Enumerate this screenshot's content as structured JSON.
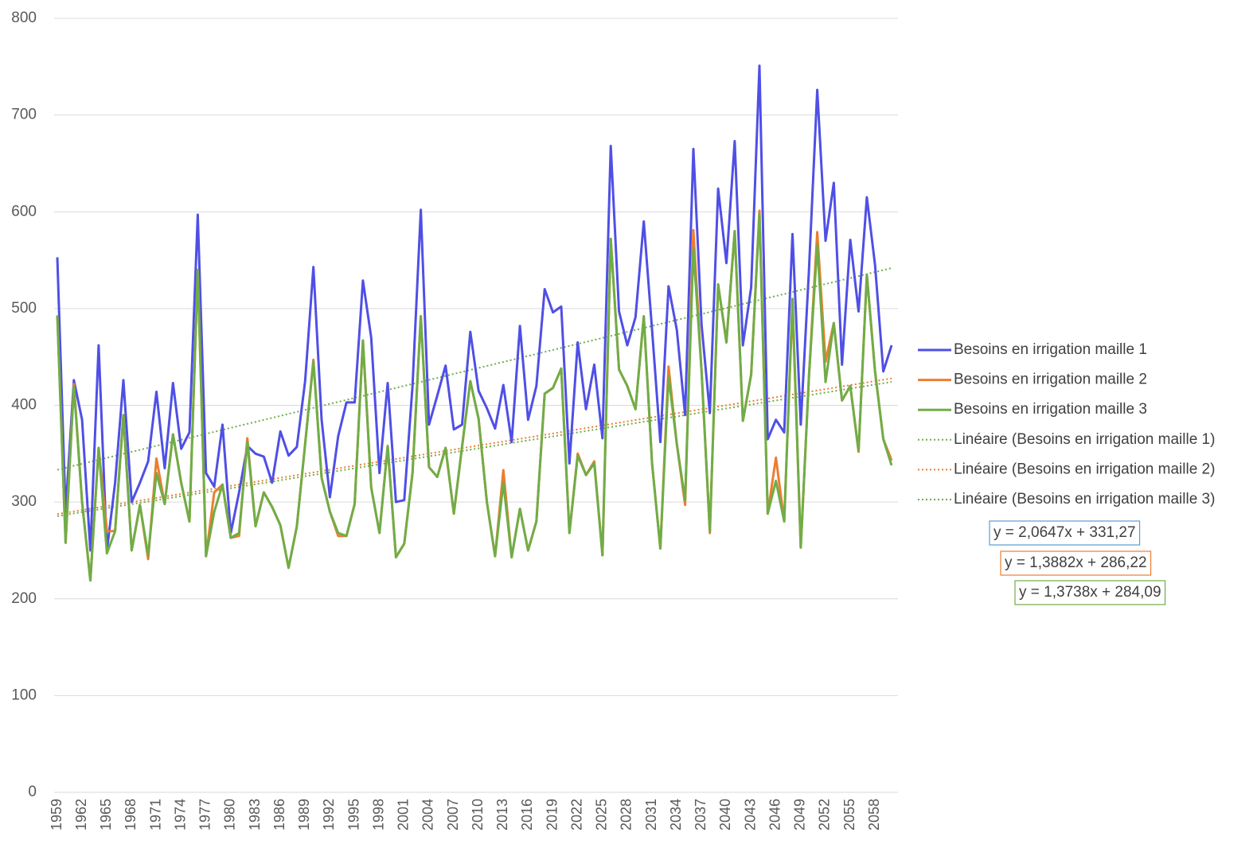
{
  "chart_data": {
    "type": "line",
    "categories": [
      "1959",
      null,
      null,
      "1962",
      null,
      null,
      "1965",
      null,
      null,
      "1968",
      null,
      null,
      "1971",
      null,
      null,
      "1974",
      null,
      null,
      "1977",
      null,
      null,
      "1980",
      null,
      null,
      "1983",
      null,
      null,
      "1986",
      null,
      null,
      "1989",
      null,
      null,
      "1992",
      null,
      null,
      "1995",
      null,
      null,
      "1998",
      null,
      null,
      "2001",
      null,
      null,
      "2004",
      null,
      null,
      "2007",
      null,
      null,
      "2010",
      null,
      null,
      "2013",
      null,
      null,
      "2016",
      null,
      null,
      "2019",
      null,
      null,
      "2022",
      null,
      null,
      "2025",
      null,
      null,
      "2028",
      null,
      null,
      "2031",
      null,
      null,
      "2034",
      null,
      null,
      "2037",
      null,
      null,
      "2040",
      null,
      null,
      "2043",
      null,
      null,
      "2046",
      null,
      null,
      "2049",
      null,
      null,
      "2052",
      null,
      null,
      "2055",
      null,
      null,
      "2058",
      null,
      null
    ],
    "series": [
      {
        "name": "Besoins en irrigation maille 1",
        "color": "#4f4fe6",
        "values": [
          553,
          290,
          426,
          385,
          250,
          462,
          250,
          320,
          426,
          300,
          320,
          342,
          414,
          335,
          423,
          355,
          372,
          597,
          330,
          316,
          380,
          268,
          310,
          358,
          350,
          347,
          320,
          373,
          348,
          357,
          425,
          543,
          385,
          305,
          368,
          403,
          403,
          529,
          470,
          330,
          423,
          300,
          302,
          420,
          602,
          380,
          410,
          441,
          375,
          380,
          476,
          415,
          397,
          376,
          421,
          362,
          482,
          385,
          420,
          520,
          496,
          502,
          340,
          465,
          396,
          442,
          366,
          668,
          497,
          462,
          491,
          590,
          478,
          362,
          523,
          478,
          390,
          665,
          483,
          392,
          624,
          547,
          673,
          462,
          522,
          751,
          365,
          385,
          372,
          577,
          380,
          540,
          726,
          570,
          630,
          442,
          571,
          497,
          615,
          545,
          435,
          462
        ]
      },
      {
        "name": "Besoins en irrigation maille 2",
        "color": "#ed7d31",
        "values": [
          493,
          258,
          422,
          300,
          219,
          356,
          270,
          270,
          390,
          250,
          297,
          241,
          345,
          298,
          370,
          320,
          280,
          540,
          244,
          310,
          318,
          263,
          265,
          366,
          275,
          310,
          295,
          276,
          232,
          275,
          360,
          447,
          325,
          290,
          265,
          265,
          298,
          467,
          315,
          268,
          358,
          243,
          257,
          330,
          492,
          336,
          326,
          356,
          288,
          357,
          425,
          386,
          300,
          244,
          333,
          243,
          293,
          250,
          280,
          412,
          418,
          438,
          268,
          350,
          328,
          342,
          245,
          572,
          437,
          420,
          396,
          492,
          340,
          252,
          440,
          360,
          297,
          581,
          435,
          268,
          525,
          465,
          580,
          384,
          432,
          601,
          288,
          346,
          280,
          505,
          253,
          430,
          579,
          445,
          485,
          405,
          420,
          352,
          535,
          435,
          365,
          343
        ]
      },
      {
        "name": "Besoins en irrigation maille 3",
        "color": "#70ad47",
        "values": [
          493,
          258,
          420,
          300,
          219,
          356,
          247,
          270,
          390,
          250,
          297,
          245,
          330,
          298,
          370,
          320,
          280,
          540,
          244,
          290,
          318,
          263,
          268,
          362,
          275,
          310,
          295,
          276,
          232,
          275,
          360,
          445,
          325,
          290,
          268,
          265,
          298,
          467,
          315,
          268,
          358,
          243,
          257,
          330,
          492,
          336,
          326,
          356,
          288,
          357,
          425,
          386,
          300,
          244,
          320,
          243,
          293,
          250,
          280,
          412,
          418,
          438,
          268,
          348,
          328,
          340,
          245,
          572,
          437,
          420,
          396,
          492,
          340,
          252,
          430,
          360,
          302,
          562,
          435,
          270,
          525,
          465,
          580,
          384,
          432,
          598,
          288,
          322,
          280,
          510,
          253,
          430,
          566,
          424,
          485,
          405,
          420,
          353,
          535,
          435,
          365,
          338
        ]
      }
    ],
    "trendlines": [
      {
        "name": "Linéaire (Besoins en irrigation maille 1)",
        "color": "#70ad47",
        "box_color": "#5b9bd5",
        "equation": "y = 2,0647x + 331,27",
        "slope": 2.0647,
        "intercept": 331.27
      },
      {
        "name": "Linéaire (Besoins en irrigation maille 2)",
        "color": "#ed7d31",
        "box_color": "#ed7d31",
        "equation": "y = 1,3882x + 286,22",
        "slope": 1.3882,
        "intercept": 286.22
      },
      {
        "name": "Linéaire (Besoins en irrigation maille 3)",
        "color": "#70ad47",
        "box_color": "#70ad47",
        "equation": "y = 1,3738x + 284,09",
        "slope": 1.3738,
        "intercept": 284.09
      }
    ],
    "ylim": [
      0,
      800
    ],
    "yticks": [
      0,
      100,
      200,
      300,
      400,
      500,
      600,
      700,
      800
    ],
    "grid": true
  }
}
